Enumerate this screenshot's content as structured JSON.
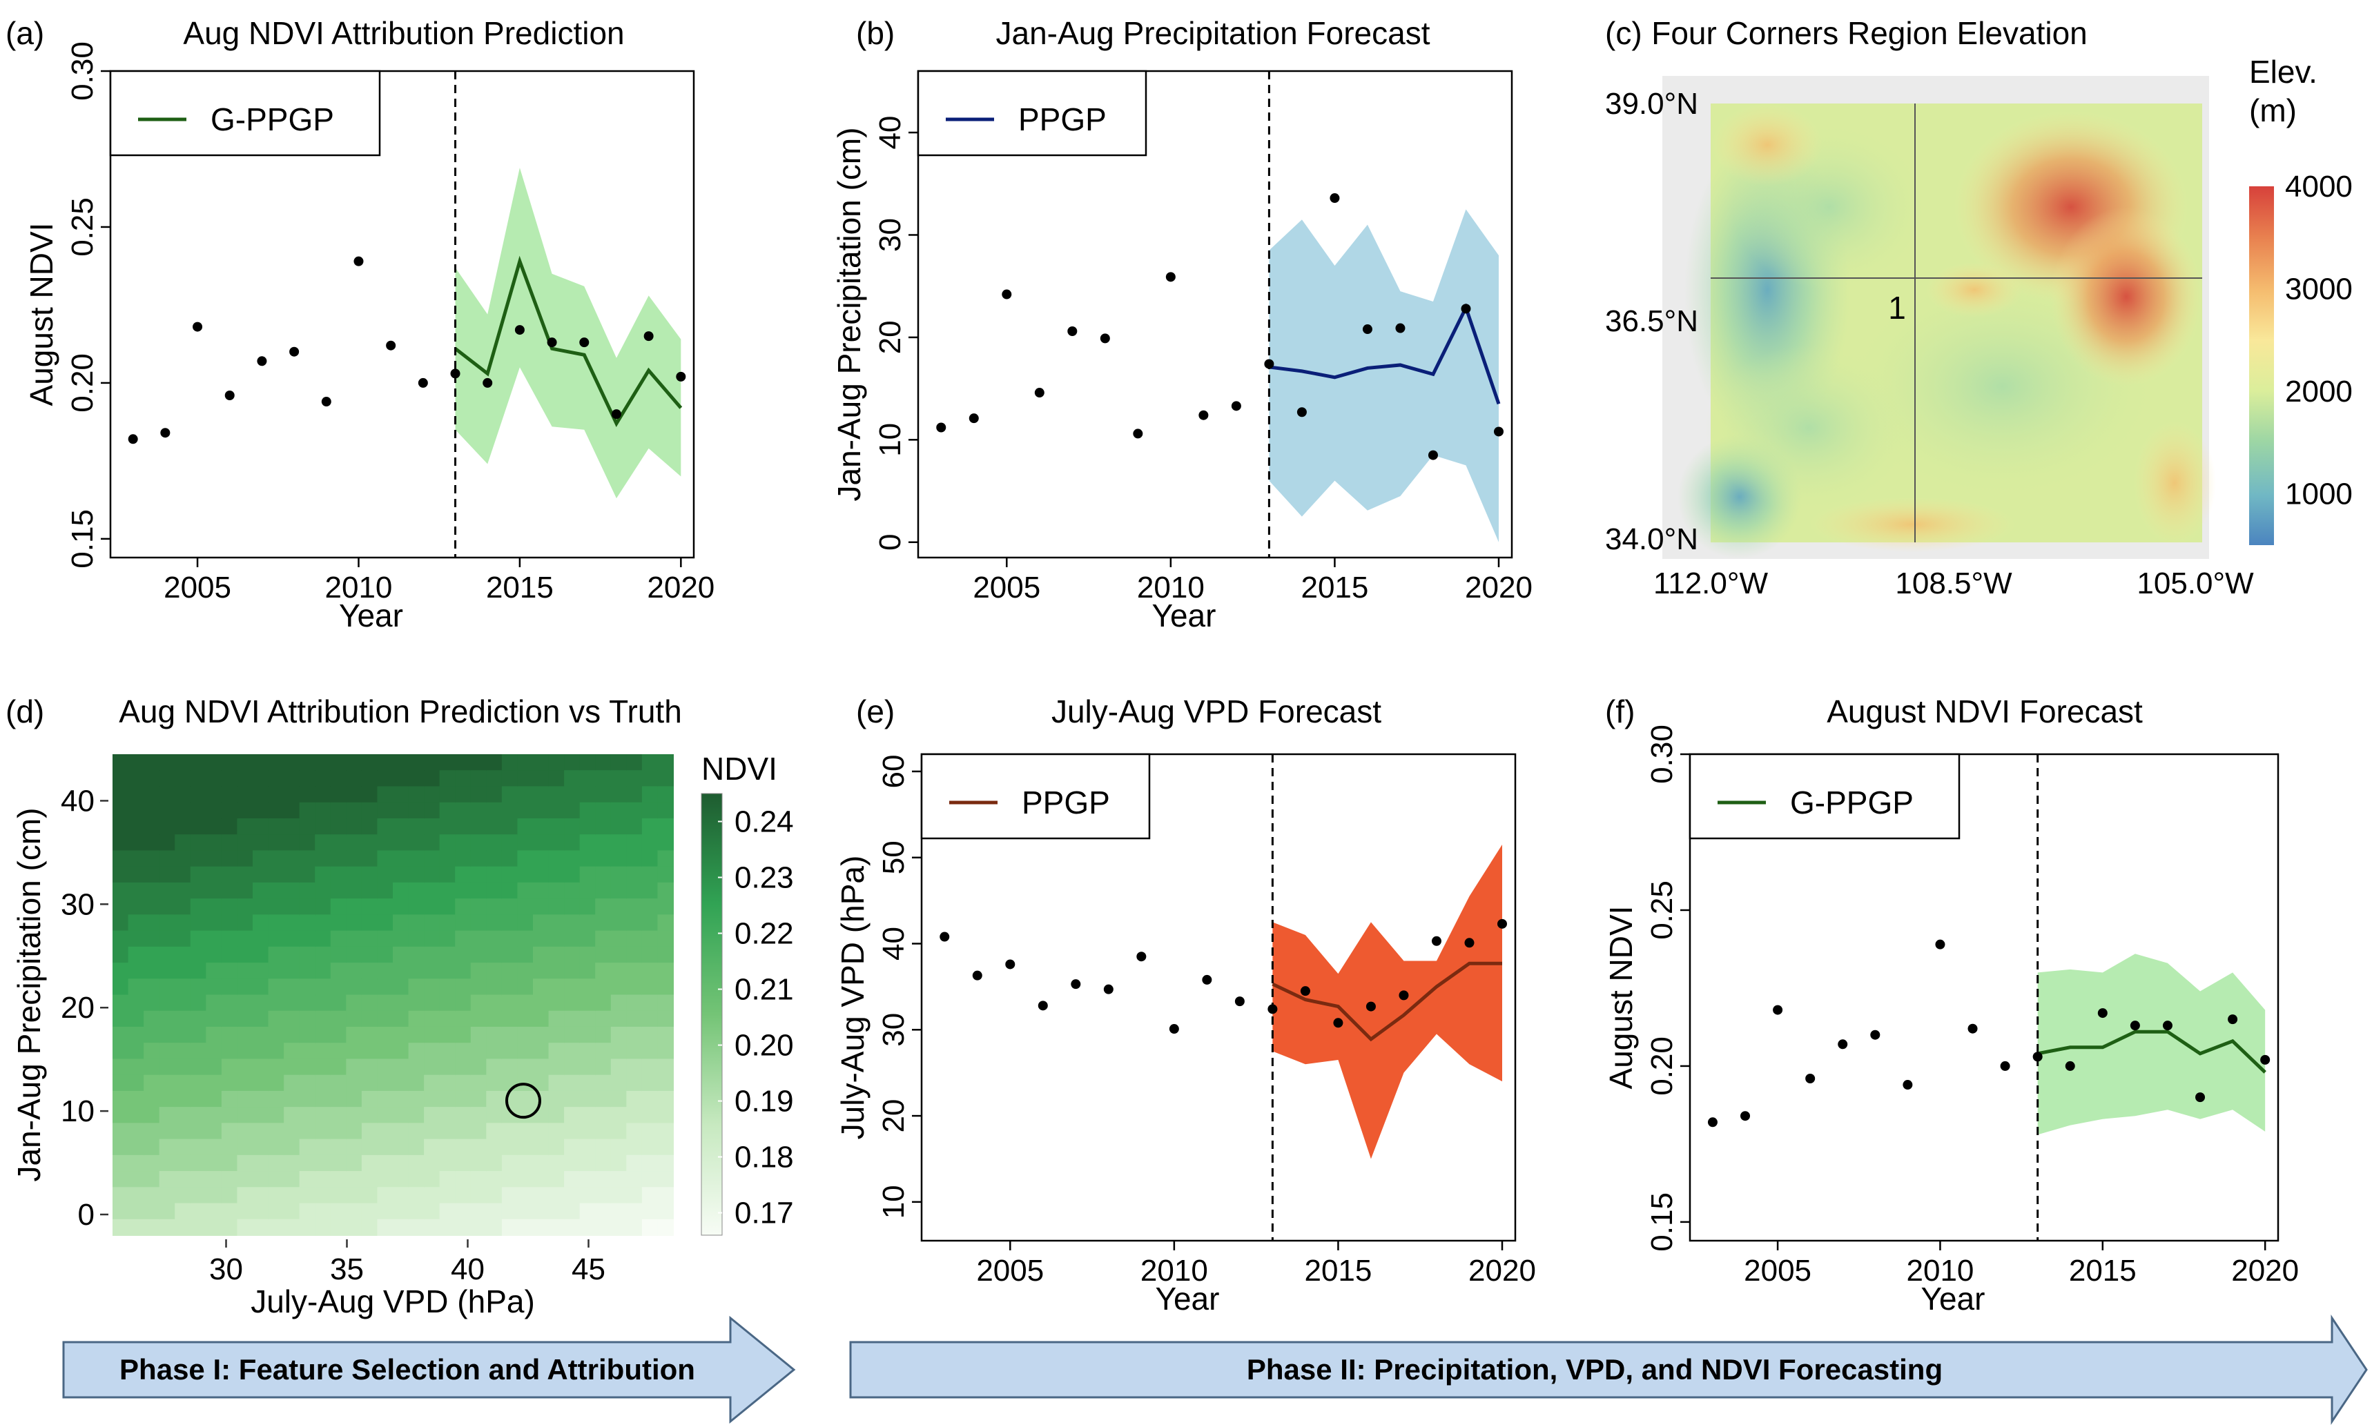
{
  "colors": {
    "gppgp_line": "#1e5f14",
    "gppgp_band": "#b6ebb1",
    "precip_line": "#0a1f78",
    "precip_band": "#b0d7e6",
    "vpd_line": "#7a2a10",
    "vpd_band": "#ee5a30",
    "arrow_fill": "#c2d7ee",
    "arrow_stroke": "#4a6785"
  },
  "phases": {
    "phase1": "Phase I: Feature Selection and Attribution",
    "phase2": "Phase II: Precipitation, VPD, and NDVI Forecasting"
  },
  "chart_data": [
    {
      "id": "a",
      "panel_label": "(a)",
      "type": "line",
      "title": "Aug NDVI Attribution Prediction",
      "xlabel": "Year",
      "ylabel": "August NDVI",
      "xlim": [
        2002.3,
        2020.4
      ],
      "ylim": [
        0.144,
        0.3
      ],
      "xticks": [
        2005,
        2010,
        2015,
        2020
      ],
      "yticks": [
        0.15,
        0.2,
        0.25,
        0.3
      ],
      "ytick_labels": [
        "0.15",
        "0.20",
        "0.25",
        "0.30"
      ],
      "legend": "G-PPGP",
      "legend_position": "top-left",
      "split_year": 2013,
      "observed": {
        "x": [
          2003,
          2004,
          2005,
          2006,
          2007,
          2008,
          2009,
          2010,
          2011,
          2012,
          2013,
          2014,
          2015,
          2016,
          2017,
          2018,
          2019,
          2020
        ],
        "y": [
          0.182,
          0.184,
          0.218,
          0.196,
          0.207,
          0.21,
          0.194,
          0.239,
          0.212,
          0.2,
          0.203,
          0.2,
          0.217,
          0.213,
          0.213,
          0.19,
          0.215,
          0.202
        ]
      },
      "forecast": {
        "x": [
          2013,
          2014,
          2015,
          2016,
          2017,
          2018,
          2019,
          2020
        ],
        "mean": [
          0.211,
          0.203,
          0.239,
          0.211,
          0.209,
          0.187,
          0.204,
          0.192
        ],
        "lower": [
          0.185,
          0.174,
          0.205,
          0.186,
          0.185,
          0.163,
          0.179,
          0.17
        ],
        "upper": [
          0.237,
          0.222,
          0.269,
          0.235,
          0.231,
          0.208,
          0.228,
          0.214
        ]
      }
    },
    {
      "id": "b",
      "panel_label": "(b)",
      "type": "line",
      "title": "Jan-Aug Precipitation Forecast",
      "xlabel": "Year",
      "ylabel": "Jan-Aug Precipitation (cm)",
      "xlim": [
        2002.3,
        2020.4
      ],
      "ylim": [
        -1.5,
        46
      ],
      "xticks": [
        2005,
        2010,
        2015,
        2020
      ],
      "yticks": [
        0,
        10,
        20,
        30,
        40
      ],
      "ytick_labels": [
        "0",
        "10",
        "20",
        "30",
        "40"
      ],
      "legend": "PPGP",
      "legend_position": "top-left",
      "split_year": 2013,
      "observed": {
        "x": [
          2003,
          2004,
          2005,
          2006,
          2007,
          2008,
          2009,
          2010,
          2011,
          2012,
          2013,
          2014,
          2015,
          2016,
          2017,
          2018,
          2019,
          2020
        ],
        "y": [
          11.2,
          12.1,
          24.2,
          14.6,
          20.6,
          19.9,
          10.6,
          25.9,
          12.4,
          13.3,
          17.4,
          12.7,
          33.6,
          20.8,
          20.9,
          8.5,
          22.8,
          10.8
        ]
      },
      "forecast": {
        "x": [
          2013,
          2014,
          2015,
          2016,
          2017,
          2018,
          2019,
          2020
        ],
        "mean": [
          17.1,
          16.7,
          16.1,
          17.0,
          17.3,
          16.4,
          22.9,
          13.5
        ],
        "lower": [
          6.0,
          2.5,
          6.0,
          3.1,
          4.5,
          8.5,
          7.5,
          0.0
        ],
        "upper": [
          28.5,
          31.5,
          27.0,
          31.0,
          24.5,
          23.5,
          32.5,
          28.0
        ]
      }
    },
    {
      "id": "c",
      "panel_label": "(c)",
      "type": "heatmap",
      "title": "Four Corners Region Elevation",
      "x_tick_labels": [
        "112.0°W",
        "108.5°W",
        "105.0°W"
      ],
      "y_tick_labels": [
        "39.0°N",
        "36.5°N",
        "34.0°N"
      ],
      "colorbar_title": [
        "Elev.",
        "(m)"
      ],
      "colorbar_ticks": [
        "4000",
        "3000",
        "2000",
        "1000"
      ],
      "colorbar_values": [
        4000,
        3000,
        2000,
        1000
      ],
      "colorbar_range": [
        500,
        4000
      ],
      "annotation": "1"
    },
    {
      "id": "d",
      "panel_label": "(d)",
      "type": "heatmap",
      "title": "Aug NDVI Attribution Prediction vs Truth",
      "xlabel": "July-Aug VPD (hPa)",
      "ylabel": "Jan-Aug Precipitation (cm)",
      "xlim": [
        25.3,
        48.5
      ],
      "ylim": [
        -2.0,
        44.5
      ],
      "xticks": [
        30,
        35,
        40,
        45
      ],
      "yticks": [
        0,
        10,
        20,
        30,
        40
      ],
      "colorbar_title": "NDVI",
      "colorbar_ticks": [
        "0.24",
        "0.23",
        "0.22",
        "0.21",
        "0.20",
        "0.19",
        "0.18",
        "0.17"
      ],
      "colorbar_values": [
        0.24,
        0.23,
        0.22,
        0.21,
        0.2,
        0.19,
        0.18,
        0.17
      ],
      "colorbar_range": [
        0.166,
        0.245
      ],
      "marker": {
        "vpd": 42.3,
        "precip": 11.0
      }
    },
    {
      "id": "e",
      "panel_label": "(e)",
      "type": "line",
      "title": "July-Aug VPD Forecast",
      "xlabel": "Year",
      "ylabel": "July-Aug VPD (hPa)",
      "xlim": [
        2002.3,
        2020.4
      ],
      "ylim": [
        5.5,
        62
      ],
      "xticks": [
        2005,
        2010,
        2015,
        2020
      ],
      "yticks": [
        10,
        20,
        30,
        40,
        50,
        60
      ],
      "ytick_labels": [
        "10",
        "20",
        "30",
        "40",
        "50",
        "60"
      ],
      "legend": "PPGP",
      "legend_position": "top-left",
      "split_year": 2013,
      "observed": {
        "x": [
          2003,
          2004,
          2005,
          2006,
          2007,
          2008,
          2009,
          2010,
          2011,
          2012,
          2013,
          2014,
          2015,
          2016,
          2017,
          2018,
          2019,
          2020
        ],
        "y": [
          40.8,
          36.3,
          37.6,
          32.8,
          35.3,
          34.7,
          38.5,
          30.1,
          35.8,
          33.3,
          32.4,
          34.5,
          30.8,
          32.7,
          34.0,
          40.3,
          40.1,
          42.3
        ]
      },
      "forecast": {
        "x": [
          2013,
          2014,
          2015,
          2016,
          2017,
          2018,
          2019,
          2020
        ],
        "mean": [
          35.3,
          33.5,
          32.7,
          28.9,
          31.7,
          35.0,
          37.7,
          37.7
        ],
        "lower": [
          27.5,
          26.0,
          26.5,
          15.0,
          25.0,
          29.5,
          26.0,
          24.0
        ],
        "upper": [
          42.5,
          41.0,
          36.5,
          42.5,
          38.0,
          38.0,
          45.5,
          51.5
        ]
      }
    },
    {
      "id": "f",
      "panel_label": "(f)",
      "type": "line",
      "title": "August NDVI Forecast",
      "xlabel": "Year",
      "ylabel": "August NDVI",
      "xlim": [
        2002.3,
        2020.4
      ],
      "ylim": [
        0.144,
        0.3
      ],
      "xticks": [
        2005,
        2010,
        2015,
        2020
      ],
      "yticks": [
        0.15,
        0.2,
        0.25,
        0.3
      ],
      "ytick_labels": [
        "0.15",
        "0.20",
        "0.25",
        "0.30"
      ],
      "legend": "G-PPGP",
      "legend_position": "top-left",
      "split_year": 2013,
      "observed": {
        "x": [
          2003,
          2004,
          2005,
          2006,
          2007,
          2008,
          2009,
          2010,
          2011,
          2012,
          2013,
          2014,
          2015,
          2016,
          2017,
          2018,
          2019,
          2020
        ],
        "y": [
          0.182,
          0.184,
          0.218,
          0.196,
          0.207,
          0.21,
          0.194,
          0.239,
          0.212,
          0.2,
          0.203,
          0.2,
          0.217,
          0.213,
          0.213,
          0.19,
          0.215,
          0.202
        ]
      },
      "forecast": {
        "x": [
          2013,
          2014,
          2015,
          2016,
          2017,
          2018,
          2019,
          2020
        ],
        "mean": [
          0.204,
          0.206,
          0.206,
          0.211,
          0.211,
          0.204,
          0.208,
          0.198
        ],
        "lower": [
          0.178,
          0.181,
          0.183,
          0.184,
          0.186,
          0.183,
          0.186,
          0.179
        ],
        "upper": [
          0.23,
          0.231,
          0.23,
          0.236,
          0.233,
          0.224,
          0.23,
          0.218
        ]
      }
    }
  ]
}
